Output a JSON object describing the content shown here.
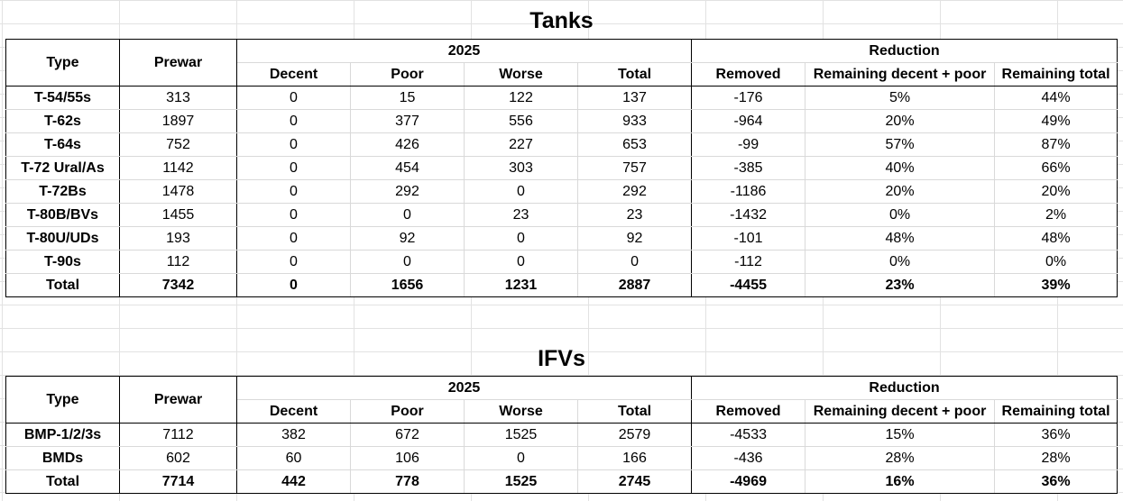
{
  "tanks": {
    "title": "Tanks",
    "header": {
      "type": "Type",
      "prewar": "Prewar",
      "group_2025": "2025",
      "group_reduction": "Reduction",
      "decent": "Decent",
      "poor": "Poor",
      "worse": "Worse",
      "total": "Total",
      "removed": "Removed",
      "remaining_decent_poor": "Remaining decent + poor",
      "remaining_total": "Remaining total"
    },
    "rows": [
      {
        "type": "T-54/55s",
        "prewar": "313",
        "decent": "0",
        "poor": "15",
        "worse": "122",
        "total": "137",
        "removed": "-176",
        "rem_dp": "5%",
        "rem_total": "44%"
      },
      {
        "type": "T-62s",
        "prewar": "1897",
        "decent": "0",
        "poor": "377",
        "worse": "556",
        "total": "933",
        "removed": "-964",
        "rem_dp": "20%",
        "rem_total": "49%"
      },
      {
        "type": "T-64s",
        "prewar": "752",
        "decent": "0",
        "poor": "426",
        "worse": "227",
        "total": "653",
        "removed": "-99",
        "rem_dp": "57%",
        "rem_total": "87%"
      },
      {
        "type": "T-72 Ural/As",
        "prewar": "1142",
        "decent": "0",
        "poor": "454",
        "worse": "303",
        "total": "757",
        "removed": "-385",
        "rem_dp": "40%",
        "rem_total": "66%"
      },
      {
        "type": "T-72Bs",
        "prewar": "1478",
        "decent": "0",
        "poor": "292",
        "worse": "0",
        "total": "292",
        "removed": "-1186",
        "rem_dp": "20%",
        "rem_total": "20%"
      },
      {
        "type": "T-80B/BVs",
        "prewar": "1455",
        "decent": "0",
        "poor": "0",
        "worse": "23",
        "total": "23",
        "removed": "-1432",
        "rem_dp": "0%",
        "rem_total": "2%"
      },
      {
        "type": "T-80U/UDs",
        "prewar": "193",
        "decent": "0",
        "poor": "92",
        "worse": "0",
        "total": "92",
        "removed": "-101",
        "rem_dp": "48%",
        "rem_total": "48%"
      },
      {
        "type": "T-90s",
        "prewar": "112",
        "decent": "0",
        "poor": "0",
        "worse": "0",
        "total": "0",
        "removed": "-112",
        "rem_dp": "0%",
        "rem_total": "0%"
      }
    ],
    "total": {
      "type": "Total",
      "prewar": "7342",
      "decent": "0",
      "poor": "1656",
      "worse": "1231",
      "total": "2887",
      "removed": "-4455",
      "rem_dp": "23%",
      "rem_total": "39%"
    }
  },
  "ifvs": {
    "title": "IFVs",
    "header": {
      "type": "Type",
      "prewar": "Prewar",
      "group_2025": "2025",
      "group_reduction": "Reduction",
      "decent": "Decent",
      "poor": "Poor",
      "worse": "Worse",
      "total": "Total",
      "removed": "Removed",
      "remaining_decent_poor": "Remaining decent + poor",
      "remaining_total": "Remaining total"
    },
    "rows": [
      {
        "type": "BMP-1/2/3s",
        "prewar": "7112",
        "decent": "382",
        "poor": "672",
        "worse": "1525",
        "total": "2579",
        "removed": "-4533",
        "rem_dp": "15%",
        "rem_total": "36%"
      },
      {
        "type": "BMDs",
        "prewar": "602",
        "decent": "60",
        "poor": "106",
        "worse": "0",
        "total": "166",
        "removed": "-436",
        "rem_dp": "28%",
        "rem_total": "28%"
      }
    ],
    "total": {
      "type": "Total",
      "prewar": "7714",
      "decent": "442",
      "poor": "778",
      "worse": "1525",
      "total": "2745",
      "removed": "-4969",
      "rem_dp": "16%",
      "rem_total": "36%"
    }
  }
}
